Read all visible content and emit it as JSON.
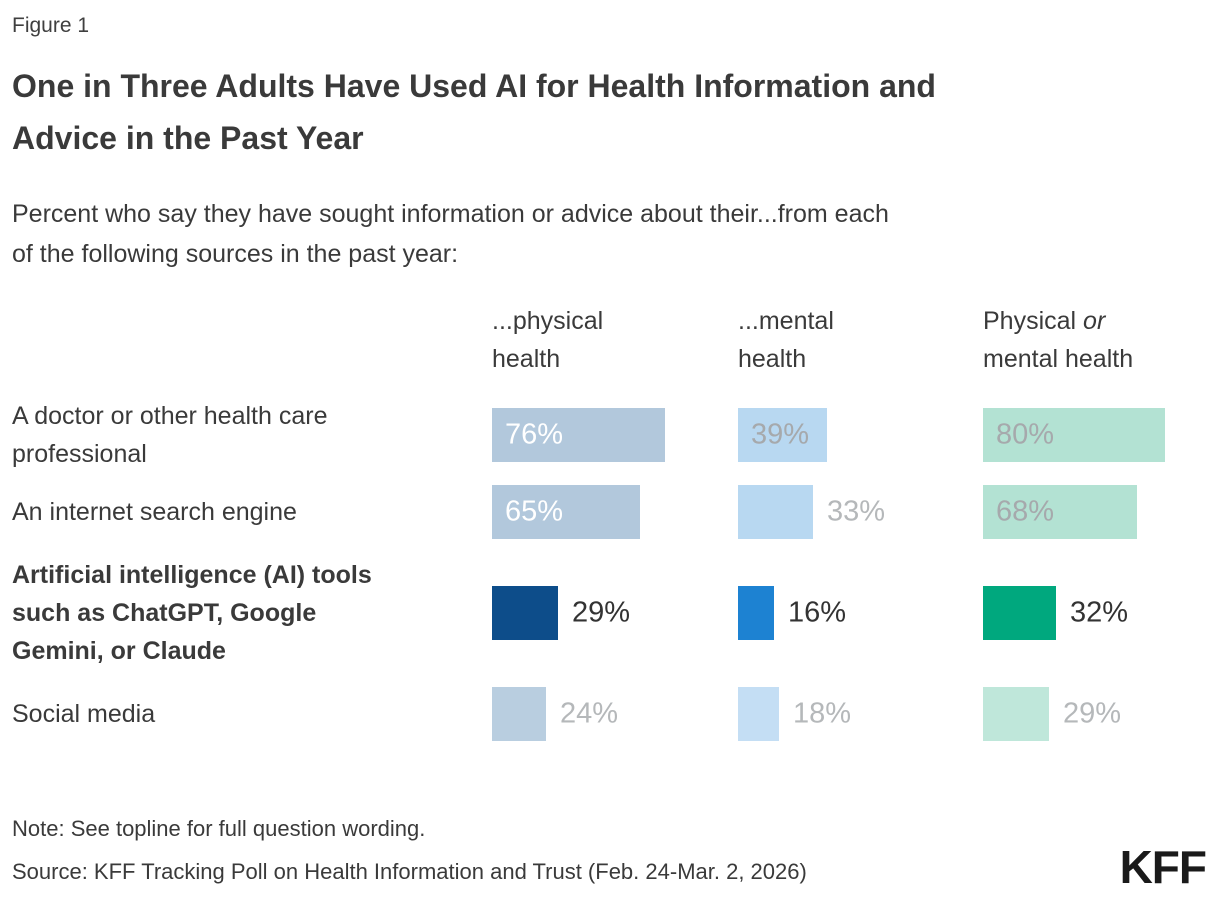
{
  "figure_label": "Figure 1",
  "note": "Note: See topline for full question wording.",
  "source": "Source: KFF Tracking Poll on Health Information and Trust (Feb. 24-Mar. 2, 2026)",
  "logo": "KFF",
  "chart_data": {
    "type": "bar",
    "orientation": "horizontal",
    "unit": "percent",
    "value_range": [
      0,
      100
    ],
    "grid": false,
    "legend": "none",
    "title": "One in Three Adults Have Used AI for Health Information and\nAdvice in the Past Year",
    "subtitle": "Percent who say they have sought information or advice about their...from each\nof the following sources in the past year:",
    "palette": {
      "physical_light": "#b2c8dc",
      "physical_lighter": "#b9cee0",
      "physical_navy": "#0d4d8a",
      "mental_light": "#b8d8f1",
      "mental_lighter": "#c4def4",
      "mental_bright": "#1d82d2",
      "either_light": "#b3e2d3",
      "either_lighter": "#bfe7da",
      "either_green": "#00a87e",
      "value_white": "#ffffff",
      "value_gray": "#a6a9ac",
      "value_gray_light": "#b5b8ba",
      "value_dark": "#333333"
    },
    "columns": [
      {
        "label": "...physical\nhealth"
      },
      {
        "label": "...mental\nhealth"
      },
      {
        "label_pre": "Physical ",
        "label_em": "or",
        "label_post": "\nmental health"
      }
    ],
    "rows": [
      {
        "label": "A doctor or other health care\nprofessional",
        "bold": false,
        "cells": [
          {
            "value": 76,
            "display": "76%",
            "bar": "#b2c8dc",
            "text": "#ffffff",
            "pos": "inside"
          },
          {
            "value": 39,
            "display": "39%",
            "bar": "#b8d8f1",
            "text": "#a6a9ac",
            "pos": "inside"
          },
          {
            "value": 80,
            "display": "80%",
            "bar": "#b3e2d3",
            "text": "#a6a9ac",
            "pos": "inside"
          }
        ]
      },
      {
        "label": "An internet search engine",
        "bold": false,
        "cells": [
          {
            "value": 65,
            "display": "65%",
            "bar": "#b2c8dc",
            "text": "#ffffff",
            "pos": "inside"
          },
          {
            "value": 33,
            "display": "33%",
            "bar": "#b8d8f1",
            "text": "#b5b8ba",
            "pos": "outside"
          },
          {
            "value": 68,
            "display": "68%",
            "bar": "#b3e2d3",
            "text": "#a6a9ac",
            "pos": "inside"
          }
        ]
      },
      {
        "label": "Artificial intelligence (AI) tools\nsuch as ChatGPT, Google\nGemini, or Claude",
        "bold": true,
        "cells": [
          {
            "value": 29,
            "display": "29%",
            "bar": "#0d4d8a",
            "text": "#333333",
            "pos": "outside"
          },
          {
            "value": 16,
            "display": "16%",
            "bar": "#1d82d2",
            "text": "#333333",
            "pos": "outside"
          },
          {
            "value": 32,
            "display": "32%",
            "bar": "#00a87e",
            "text": "#333333",
            "pos": "outside"
          }
        ]
      },
      {
        "label": "Social media",
        "bold": false,
        "cells": [
          {
            "value": 24,
            "display": "24%",
            "bar": "#b9cee0",
            "text": "#b5b8ba",
            "pos": "outside"
          },
          {
            "value": 18,
            "display": "18%",
            "bar": "#c4def4",
            "text": "#b5b8ba",
            "pos": "outside"
          },
          {
            "value": 29,
            "display": "29%",
            "bar": "#bfe7da",
            "text": "#b5b8ba",
            "pos": "outside"
          }
        ]
      }
    ]
  }
}
